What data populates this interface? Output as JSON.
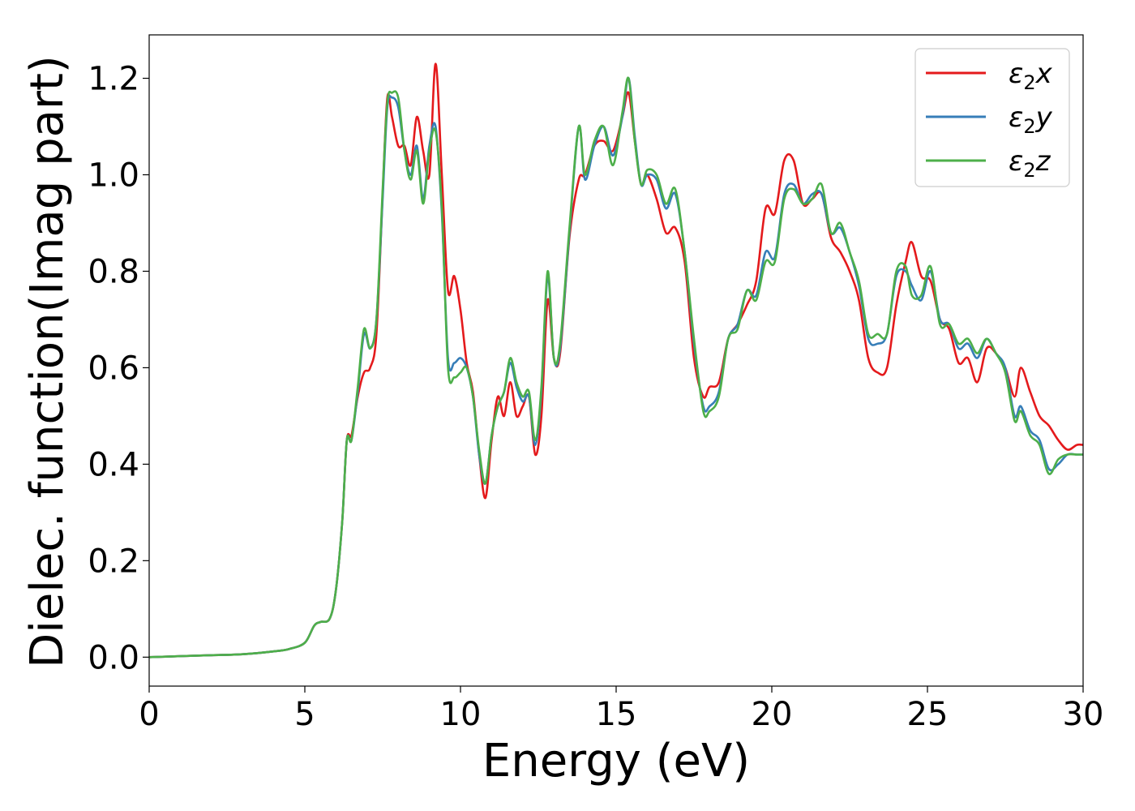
{
  "chart_data": {
    "type": "line",
    "xlabel": "Energy (eV)",
    "ylabel": "Dielec. function(Imag part)",
    "xlim": [
      0,
      30
    ],
    "ylim": [
      -0.06,
      1.29
    ],
    "xticks": [
      "0",
      "5",
      "10",
      "15",
      "20",
      "25",
      "30"
    ],
    "yticks": [
      "0.0",
      "0.2",
      "0.4",
      "0.6",
      "0.8",
      "1.0",
      "1.2"
    ],
    "xtick_values": [
      0,
      5,
      10,
      15,
      20,
      25,
      30
    ],
    "ytick_values": [
      0.0,
      0.2,
      0.4,
      0.6,
      0.8,
      1.0,
      1.2
    ],
    "grid": false,
    "legend_position": "top-right",
    "series": [
      {
        "name": "ε₂x",
        "legend": {
          "base": "ε",
          "sub": "2",
          "tail": "x"
        },
        "color": "#e41a1c",
        "x": [
          0,
          1,
          2,
          3,
          4,
          4.5,
          5.0,
          5.3,
          5.5,
          5.8,
          6.0,
          6.2,
          6.35,
          6.5,
          6.7,
          6.9,
          7.1,
          7.3,
          7.5,
          7.65,
          7.8,
          8.0,
          8.2,
          8.4,
          8.6,
          8.8,
          9.0,
          9.2,
          9.4,
          9.6,
          9.8,
          10.0,
          10.2,
          10.4,
          10.6,
          10.8,
          11.0,
          11.2,
          11.4,
          11.6,
          11.8,
          12.0,
          12.2,
          12.4,
          12.6,
          12.8,
          13.0,
          13.2,
          13.5,
          13.8,
          14.0,
          14.3,
          14.6,
          14.9,
          15.2,
          15.4,
          15.6,
          15.8,
          16.0,
          16.3,
          16.6,
          16.9,
          17.2,
          17.5,
          17.8,
          18.0,
          18.3,
          18.6,
          18.9,
          19.2,
          19.5,
          19.8,
          20.1,
          20.4,
          20.7,
          21.0,
          21.3,
          21.6,
          21.9,
          22.2,
          22.5,
          22.8,
          23.1,
          23.4,
          23.7,
          24.0,
          24.3,
          24.5,
          24.8,
          25.1,
          25.4,
          25.7,
          26.0,
          26.3,
          26.6,
          26.9,
          27.2,
          27.5,
          27.8,
          28.0,
          28.3,
          28.6,
          28.9,
          29.2,
          29.5,
          29.8,
          30
        ],
        "y": [
          0.0,
          0.002,
          0.004,
          0.006,
          0.012,
          0.017,
          0.03,
          0.065,
          0.073,
          0.08,
          0.14,
          0.28,
          0.45,
          0.46,
          0.54,
          0.59,
          0.6,
          0.67,
          0.96,
          1.16,
          1.12,
          1.06,
          1.06,
          1.02,
          1.12,
          1.05,
          1.0,
          1.23,
          1.0,
          0.76,
          0.79,
          0.72,
          0.61,
          0.55,
          0.42,
          0.33,
          0.45,
          0.54,
          0.5,
          0.57,
          0.5,
          0.52,
          0.54,
          0.42,
          0.5,
          0.74,
          0.62,
          0.63,
          0.87,
          0.99,
          1.0,
          1.06,
          1.07,
          1.05,
          1.12,
          1.17,
          1.07,
          0.98,
          1.0,
          0.95,
          0.88,
          0.89,
          0.82,
          0.62,
          0.54,
          0.56,
          0.57,
          0.66,
          0.69,
          0.73,
          0.78,
          0.93,
          0.92,
          1.03,
          1.03,
          0.94,
          0.95,
          0.96,
          0.87,
          0.84,
          0.8,
          0.74,
          0.62,
          0.59,
          0.6,
          0.73,
          0.82,
          0.86,
          0.79,
          0.78,
          0.7,
          0.68,
          0.61,
          0.62,
          0.57,
          0.64,
          0.63,
          0.6,
          0.54,
          0.6,
          0.55,
          0.5,
          0.48,
          0.45,
          0.43,
          0.44,
          0.44
        ]
      },
      {
        "name": "ε₂y",
        "legend": {
          "base": "ε",
          "sub": "2",
          "tail": "y"
        },
        "color": "#377eb8",
        "x": [
          0,
          1,
          2,
          3,
          4,
          4.5,
          5.0,
          5.3,
          5.5,
          5.8,
          6.0,
          6.2,
          6.35,
          6.5,
          6.7,
          6.9,
          7.1,
          7.3,
          7.5,
          7.65,
          7.8,
          8.0,
          8.2,
          8.4,
          8.6,
          8.8,
          9.0,
          9.2,
          9.4,
          9.6,
          9.8,
          10.0,
          10.2,
          10.4,
          10.6,
          10.8,
          11.0,
          11.2,
          11.4,
          11.6,
          11.8,
          12.0,
          12.2,
          12.4,
          12.6,
          12.8,
          13.0,
          13.2,
          13.5,
          13.8,
          14.0,
          14.3,
          14.6,
          14.9,
          15.2,
          15.4,
          15.6,
          15.8,
          16.0,
          16.3,
          16.6,
          16.9,
          17.2,
          17.5,
          17.8,
          18.0,
          18.3,
          18.6,
          18.9,
          19.2,
          19.5,
          19.8,
          20.1,
          20.4,
          20.7,
          21.0,
          21.3,
          21.6,
          21.9,
          22.2,
          22.5,
          22.8,
          23.1,
          23.4,
          23.7,
          24.0,
          24.3,
          24.5,
          24.8,
          25.1,
          25.4,
          25.7,
          26.0,
          26.3,
          26.6,
          26.9,
          27.2,
          27.5,
          27.8,
          28.0,
          28.3,
          28.6,
          28.9,
          29.2,
          29.5,
          29.8,
          30
        ],
        "y": [
          0.0,
          0.002,
          0.004,
          0.006,
          0.012,
          0.017,
          0.03,
          0.065,
          0.073,
          0.08,
          0.14,
          0.28,
          0.45,
          0.45,
          0.55,
          0.67,
          0.64,
          0.7,
          0.95,
          1.14,
          1.16,
          1.14,
          1.05,
          1.0,
          1.06,
          0.95,
          1.06,
          1.1,
          0.92,
          0.62,
          0.61,
          0.62,
          0.6,
          0.54,
          0.42,
          0.36,
          0.46,
          0.52,
          0.55,
          0.61,
          0.56,
          0.53,
          0.54,
          0.44,
          0.55,
          0.79,
          0.62,
          0.64,
          0.88,
          1.1,
          0.99,
          1.06,
          1.1,
          1.04,
          1.12,
          1.2,
          1.08,
          0.98,
          1.0,
          0.99,
          0.93,
          0.96,
          0.84,
          0.65,
          0.52,
          0.52,
          0.55,
          0.66,
          0.69,
          0.76,
          0.75,
          0.84,
          0.83,
          0.96,
          0.98,
          0.94,
          0.96,
          0.96,
          0.88,
          0.89,
          0.84,
          0.77,
          0.66,
          0.65,
          0.67,
          0.79,
          0.8,
          0.77,
          0.74,
          0.8,
          0.7,
          0.69,
          0.64,
          0.65,
          0.62,
          0.66,
          0.63,
          0.6,
          0.5,
          0.52,
          0.47,
          0.45,
          0.39,
          0.4,
          0.42,
          0.42,
          0.42
        ]
      },
      {
        "name": "ε₂z",
        "legend": {
          "base": "ε",
          "sub": "2",
          "tail": "z"
        },
        "color": "#4daf4a",
        "x": [
          0,
          1,
          2,
          3,
          4,
          4.5,
          5.0,
          5.3,
          5.5,
          5.8,
          6.0,
          6.2,
          6.35,
          6.5,
          6.7,
          6.9,
          7.1,
          7.3,
          7.5,
          7.65,
          7.8,
          8.0,
          8.2,
          8.4,
          8.6,
          8.8,
          9.0,
          9.2,
          9.4,
          9.6,
          9.8,
          10.0,
          10.2,
          10.4,
          10.6,
          10.8,
          11.0,
          11.2,
          11.4,
          11.6,
          11.8,
          12.0,
          12.2,
          12.4,
          12.6,
          12.8,
          13.0,
          13.2,
          13.5,
          13.8,
          14.0,
          14.3,
          14.6,
          14.9,
          15.2,
          15.4,
          15.6,
          15.8,
          16.0,
          16.3,
          16.6,
          16.9,
          17.2,
          17.5,
          17.8,
          18.0,
          18.3,
          18.6,
          18.9,
          19.2,
          19.5,
          19.8,
          20.1,
          20.4,
          20.7,
          21.0,
          21.3,
          21.6,
          21.9,
          22.2,
          22.5,
          22.8,
          23.1,
          23.4,
          23.7,
          24.0,
          24.3,
          24.5,
          24.8,
          25.1,
          25.4,
          25.7,
          26.0,
          26.3,
          26.6,
          26.9,
          27.2,
          27.5,
          27.8,
          28.0,
          28.3,
          28.6,
          28.9,
          29.2,
          29.5,
          29.8,
          30
        ],
        "y": [
          0.0,
          0.002,
          0.004,
          0.006,
          0.012,
          0.017,
          0.03,
          0.065,
          0.073,
          0.08,
          0.14,
          0.28,
          0.45,
          0.45,
          0.56,
          0.68,
          0.64,
          0.7,
          0.97,
          1.15,
          1.17,
          1.16,
          1.05,
          0.99,
          1.05,
          0.94,
          1.05,
          1.09,
          0.93,
          0.6,
          0.58,
          0.59,
          0.6,
          0.54,
          0.43,
          0.36,
          0.46,
          0.52,
          0.55,
          0.62,
          0.57,
          0.54,
          0.55,
          0.45,
          0.56,
          0.8,
          0.62,
          0.65,
          0.89,
          1.1,
          1.0,
          1.07,
          1.1,
          1.02,
          1.13,
          1.2,
          1.07,
          0.98,
          1.01,
          1.0,
          0.94,
          0.97,
          0.84,
          0.66,
          0.51,
          0.51,
          0.54,
          0.66,
          0.68,
          0.76,
          0.74,
          0.82,
          0.82,
          0.95,
          0.97,
          0.94,
          0.95,
          0.98,
          0.88,
          0.9,
          0.84,
          0.78,
          0.67,
          0.67,
          0.67,
          0.8,
          0.81,
          0.75,
          0.75,
          0.81,
          0.69,
          0.69,
          0.65,
          0.66,
          0.63,
          0.66,
          0.63,
          0.59,
          0.49,
          0.51,
          0.46,
          0.44,
          0.38,
          0.41,
          0.42,
          0.42,
          0.42
        ]
      }
    ]
  }
}
